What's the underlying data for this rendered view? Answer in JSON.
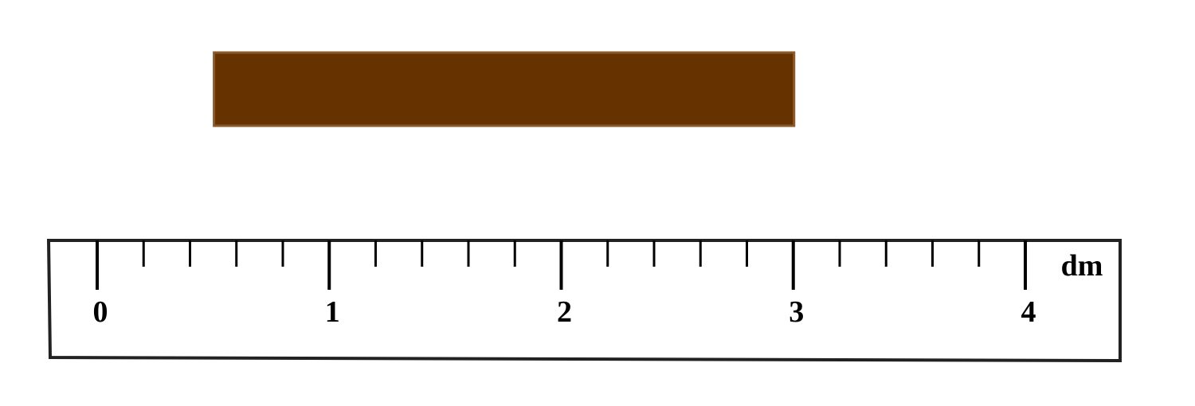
{
  "ruler": {
    "unit": "dm",
    "min": 0,
    "max": 4,
    "minor_divisions_per_unit": 5,
    "labels": [
      "0",
      "1",
      "2",
      "3",
      "4"
    ]
  },
  "object": {
    "description": "brown bar",
    "start_dm": 0.5,
    "end_dm": 3.0,
    "color": "#663300",
    "border_color": "#8B5A2B"
  },
  "colors": {
    "ruler_stroke": "#000000",
    "ruler_frame": "#222222"
  }
}
